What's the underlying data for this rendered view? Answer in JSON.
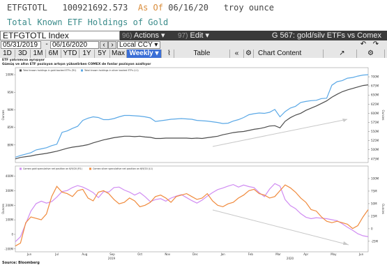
{
  "header": {
    "ticker": "ETFGTOTL",
    "price": "100921692.573",
    "as_of": "As Of",
    "as_of_date": "06/16/20",
    "unit": "troy ounce",
    "description": "Total Known ETF Holdings of Gold"
  },
  "toolbar": {
    "security": "ETFGTOTL Index",
    "actions_num": "96)",
    "actions_label": "Actions ▾",
    "edit_num": "97)",
    "edit_label": "Edit ▾",
    "page_title": "G 567: gold/silv ETFs vs Comex"
  },
  "dates": {
    "start": "05/31/2019",
    "end": "06/16/2020",
    "currency": "Local CCY"
  },
  "periods": [
    "1D",
    "3D",
    "1M",
    "6M",
    "YTD",
    "1Y",
    "5Y",
    "Max"
  ],
  "frequency": "Weekly ▾",
  "table_label": "Table",
  "chart_content_label": "Chart Content",
  "chart_heading": "ETF yatırımcısı ayrışıyor",
  "chart_subheading": "Gümüş ve altın ETF pozisyon artışın yükselirken COMEX de fonlar pozisyon azaltıyor",
  "source": "Source: Bloomberg",
  "colors": {
    "gold": "#4d4d4d",
    "silver": "#5aa8e6",
    "gold_spec": "#d08cf2",
    "silver_spec": "#f08a3c"
  },
  "chart_data": [
    {
      "type": "line",
      "ylabel": "Ounces",
      "y2label": "Ounces",
      "ylim": [
        75000000,
        102000000
      ],
      "ylim_right": [
        465000000,
        725000000
      ],
      "y_ticks": [
        "80M",
        "85M",
        "90M",
        "95M",
        "100M"
      ],
      "y2_ticks": [
        "475M",
        "500M",
        "525M",
        "550M",
        "575M",
        "600M",
        "625M",
        "650M",
        "675M",
        "700M"
      ],
      "y2_ticks_raw": [
        475000000,
        500000000,
        525000000,
        550000000,
        575000000,
        600000000,
        625000000,
        650000000,
        675000000,
        700000000
      ],
      "y_ticks_raw": [
        80000000,
        85000000,
        90000000,
        95000000,
        100000000
      ],
      "series": [
        {
          "name": "Total known holdings in gold backed ETFs (R1)",
          "axis": "right",
          "values": [
            475000000,
            479000000,
            481000000,
            483000000,
            486000000,
            488000000,
            490000000,
            493000000,
            496000000,
            500000000,
            504000000,
            507000000,
            509000000,
            511000000,
            514000000,
            519000000,
            523000000,
            527000000,
            530000000,
            533000000,
            535000000,
            537000000,
            537000000,
            536000000,
            537000000,
            535000000,
            534000000,
            531000000,
            531000000,
            532000000,
            532000000,
            532000000,
            532000000,
            532000000,
            531000000,
            532000000,
            531000000,
            533000000,
            535000000,
            537000000,
            541000000,
            544000000,
            547000000,
            549000000,
            550000000,
            553000000,
            556000000,
            558000000,
            561000000,
            565000000,
            566000000,
            560000000,
            578000000,
            588000000,
            595000000,
            600000000,
            608000000,
            614000000,
            620000000,
            627000000,
            634000000,
            644000000,
            652000000,
            659000000,
            664000000,
            668000000,
            672000000,
            676000000,
            678000000
          ]
        },
        {
          "name": "Total known holdings in silver backed ETFs (L1)",
          "axis": "left",
          "values": [
            76500000,
            77000000,
            77400000,
            77800000,
            78600000,
            78900000,
            79200000,
            79800000,
            80200000,
            83600000,
            84000000,
            84700000,
            85300000,
            87000000,
            87600000,
            88000000,
            87800000,
            87200000,
            87200000,
            87500000,
            88000000,
            88400000,
            88400000,
            88300000,
            88200000,
            88000000,
            87700000,
            86700000,
            86900000,
            87100000,
            87300000,
            87400000,
            87500000,
            87400000,
            87300000,
            87000000,
            86900000,
            86800000,
            86600000,
            86400000,
            86100000,
            86200000,
            86800000,
            87200000,
            87800000,
            88600000,
            88900000,
            89100000,
            89000000,
            89300000,
            90100000,
            88000000,
            89500000,
            90500000,
            91000000,
            92100000,
            92400000,
            92600000,
            92700000,
            93200000,
            93300000,
            97000000,
            98000000,
            98300000,
            99000000,
            99200000,
            99600000,
            99900000,
            100000000
          ]
        }
      ],
      "annotations": [
        "trend-arrow-up"
      ]
    },
    {
      "type": "line",
      "ylabel": "Ounces",
      "y2label": "Ounces",
      "ylim": [
        -120000000,
        470000000
      ],
      "ylim_right": [
        -46000000,
        125000000
      ],
      "y_ticks": [
        "-100M",
        "0",
        "100M",
        "200M",
        "300M",
        "400M"
      ],
      "y_ticks_raw": [
        -100000000,
        0,
        100000000,
        200000000,
        300000000,
        400000000
      ],
      "y2_ticks": [
        "-25M",
        "0",
        "25M",
        "50M",
        "75M",
        "100M"
      ],
      "y2_ticks_raw": [
        -25000000,
        0,
        25000000,
        50000000,
        75000000,
        100000000
      ],
      "x_labels": [
        "Jun",
        "Jul",
        "Aug",
        "Sep",
        "Oct",
        "Nov",
        "Dec",
        "Jan",
        "Feb",
        "Mar",
        "Apr",
        "May",
        "Jun"
      ],
      "year_labels": [
        "2019",
        "2020"
      ],
      "series": [
        {
          "name": "Comex gold speculative net position on 6/9/20 (R1)",
          "axis": "right",
          "values": [
            -26000000,
            -16000000,
            10000000,
            35000000,
            50000000,
            55000000,
            51000000,
            54000000,
            63000000,
            74000000,
            76000000,
            82000000,
            86000000,
            83000000,
            78000000,
            72000000,
            62000000,
            74000000,
            73000000,
            82000000,
            83000000,
            77000000,
            73000000,
            67000000,
            72000000,
            64000000,
            54000000,
            58000000,
            60000000,
            55000000,
            61000000,
            65000000,
            68000000,
            62000000,
            56000000,
            51000000,
            57000000,
            65000000,
            72000000,
            78000000,
            81000000,
            85000000,
            88000000,
            83000000,
            87000000,
            84000000,
            82000000,
            72000000,
            64000000,
            79000000,
            90000000,
            85000000,
            58000000,
            46000000,
            40000000,
            30000000,
            23000000,
            20000000,
            22000000,
            21000000,
            20000000,
            18000000,
            16000000,
            10000000,
            3000000,
            -3000000,
            -10000000,
            -14000000,
            -16000000
          ]
        },
        {
          "name": "Comex silver speculative net position on 6/9/20 (L1)",
          "axis": "left",
          "values": [
            -80000000,
            -60000000,
            80000000,
            120000000,
            110000000,
            100000000,
            140000000,
            260000000,
            330000000,
            290000000,
            280000000,
            260000000,
            300000000,
            310000000,
            250000000,
            230000000,
            290000000,
            300000000,
            280000000,
            240000000,
            210000000,
            220000000,
            250000000,
            230000000,
            190000000,
            200000000,
            220000000,
            260000000,
            270000000,
            250000000,
            220000000,
            260000000,
            270000000,
            280000000,
            260000000,
            240000000,
            250000000,
            280000000,
            230000000,
            200000000,
            190000000,
            210000000,
            220000000,
            250000000,
            270000000,
            300000000,
            310000000,
            280000000,
            270000000,
            250000000,
            260000000,
            300000000,
            340000000,
            320000000,
            290000000,
            250000000,
            220000000,
            170000000,
            160000000,
            120000000,
            90000000,
            80000000,
            90000000,
            80000000,
            70000000,
            40000000,
            60000000,
            120000000,
            170000000
          ]
        }
      ],
      "annotations": [
        "trend-arrow-down"
      ]
    }
  ]
}
